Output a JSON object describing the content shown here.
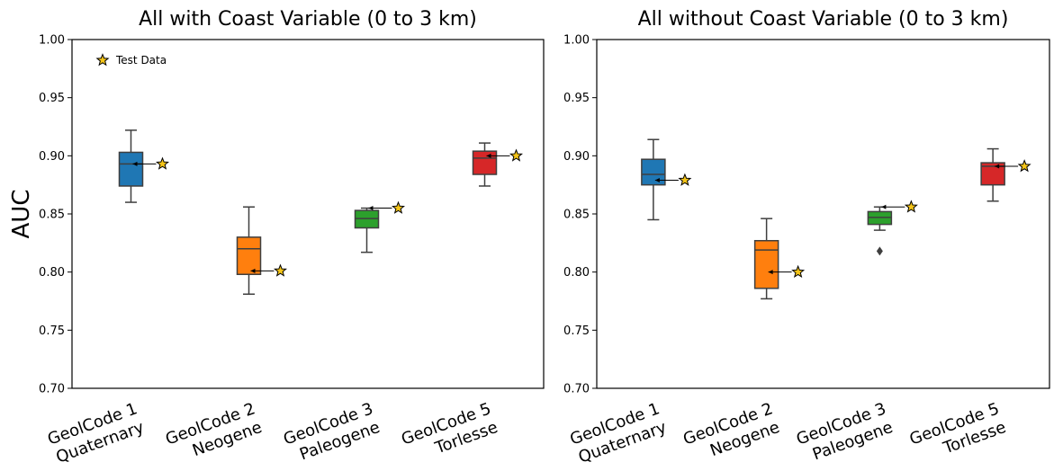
{
  "chart_data": [
    {
      "type": "box",
      "title": "All with Coast Variable (0 to 3 km)",
      "ylabel": "AUC",
      "ylim": [
        0.7,
        1.0
      ],
      "yticks": [
        "0.70",
        "0.75",
        "0.80",
        "0.85",
        "0.90",
        "0.95",
        "1.00"
      ],
      "legend": {
        "label": "Test Data",
        "position": "top-left"
      },
      "categories": [
        {
          "line1": "GeolCode 1",
          "line2": "Quaternary",
          "color": "#1f77b4",
          "whisker_low": 0.86,
          "q1": 0.874,
          "median": 0.893,
          "q3": 0.903,
          "whisker_high": 0.922,
          "outliers": [],
          "test": 0.893
        },
        {
          "line1": "GeolCode 2",
          "line2": "Neogene",
          "color": "#ff7f0e",
          "whisker_low": 0.781,
          "q1": 0.798,
          "median": 0.82,
          "q3": 0.83,
          "whisker_high": 0.856,
          "outliers": [],
          "test": 0.801
        },
        {
          "line1": "GeolCode 3",
          "line2": "Paleogene",
          "color": "#2ca02c",
          "whisker_low": 0.817,
          "q1": 0.838,
          "median": 0.846,
          "q3": 0.853,
          "whisker_high": 0.855,
          "outliers": [],
          "test": 0.855
        },
        {
          "line1": "GeolCode 5",
          "line2": "Torlesse",
          "color": "#d62728",
          "whisker_low": 0.874,
          "q1": 0.884,
          "median": 0.898,
          "q3": 0.904,
          "whisker_high": 0.911,
          "outliers": [],
          "test": 0.9
        }
      ]
    },
    {
      "type": "box",
      "title": "All without Coast Variable (0 to 3 km)",
      "ylim": [
        0.7,
        1.0
      ],
      "yticks": [
        "0.70",
        "0.75",
        "0.80",
        "0.85",
        "0.90",
        "0.95",
        "1.00"
      ],
      "categories": [
        {
          "line1": "GeolCode 1",
          "line2": "Quaternary",
          "color": "#1f77b4",
          "whisker_low": 0.845,
          "q1": 0.875,
          "median": 0.884,
          "q3": 0.897,
          "whisker_high": 0.914,
          "outliers": [],
          "test": 0.879
        },
        {
          "line1": "GeolCode 2",
          "line2": "Neogene",
          "color": "#ff7f0e",
          "whisker_low": 0.777,
          "q1": 0.786,
          "median": 0.819,
          "q3": 0.827,
          "whisker_high": 0.846,
          "outliers": [],
          "test": 0.8
        },
        {
          "line1": "GeolCode 3",
          "line2": "Paleogene",
          "color": "#2ca02c",
          "whisker_low": 0.836,
          "q1": 0.841,
          "median": 0.847,
          "q3": 0.852,
          "whisker_high": 0.856,
          "outliers": [
            0.818
          ],
          "test": 0.856
        },
        {
          "line1": "GeolCode 5",
          "line2": "Torlesse",
          "color": "#d62728",
          "whisker_low": 0.861,
          "q1": 0.875,
          "median": 0.891,
          "q3": 0.894,
          "whisker_high": 0.906,
          "outliers": [],
          "test": 0.891
        }
      ]
    }
  ]
}
